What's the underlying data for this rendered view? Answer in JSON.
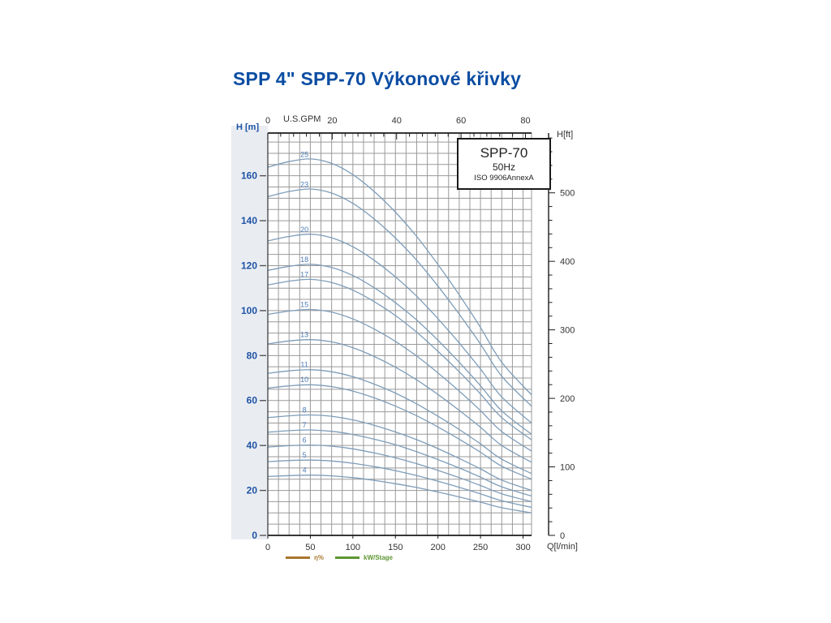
{
  "page": {
    "title": "SPP 4\" SPP-70 Výkonové křivky"
  },
  "info_box": {
    "model": "SPP-70",
    "frequency": "50Hz",
    "standard": "ISO 9906AnnexA"
  },
  "bottom_legend": {
    "items": [
      {
        "label": "η%",
        "color": "#a9762c"
      },
      {
        "label": "kW/Stage",
        "color": "#5d9632"
      }
    ]
  },
  "chart_data": {
    "type": "line",
    "description": "Pump performance curve family, head vs flow, one curve per stage count",
    "x_bottom": {
      "label": "Q[l/min]",
      "ticks": [
        0,
        50,
        100,
        150,
        200,
        250,
        300
      ],
      "range": [
        0,
        310
      ],
      "minor_grid_step": 12.5
    },
    "x_top": {
      "label": "U.S.GPM",
      "ticks": [
        0,
        20,
        40,
        60,
        80
      ],
      "minor_tick_step_gpm": 4,
      "gpm_to_lmin": 3.7854
    },
    "y_left": {
      "label": "H [m]",
      "ticks": [
        0,
        20,
        40,
        60,
        80,
        100,
        120,
        140,
        160
      ],
      "range": [
        0,
        179
      ],
      "minor_grid_step": 5
    },
    "y_right": {
      "label": "H[ft]",
      "ticks": [
        0,
        100,
        200,
        300,
        400,
        500
      ],
      "minor_tick_step_ft": 20,
      "ft_to_m": 0.3048
    },
    "grid": true,
    "legend_position": "none",
    "curve_color": "#7e9db9",
    "curve_label_color": "#4d7cb8",
    "q_samples": [
      0,
      25,
      50,
      75,
      100,
      125,
      150,
      175,
      200,
      225,
      250,
      275,
      310
    ],
    "series": [
      {
        "name": "25",
        "stages": 25,
        "heads": [
          163.8,
          166.3,
          167.5,
          165.5,
          160.5,
          153.0,
          143.8,
          133.0,
          120.5,
          107.0,
          92.5,
          77.0,
          62.5
        ]
      },
      {
        "name": "23",
        "stages": 23,
        "heads": [
          150.7,
          153.0,
          154.1,
          152.3,
          147.7,
          140.8,
          132.3,
          122.4,
          110.9,
          98.4,
          85.1,
          70.8,
          57.5
        ]
      },
      {
        "name": "20",
        "stages": 20,
        "heads": [
          131.0,
          133.0,
          134.0,
          132.4,
          128.4,
          122.4,
          115.0,
          106.4,
          96.4,
          85.6,
          74.0,
          61.6,
          50.0
        ]
      },
      {
        "name": "18",
        "stages": 18,
        "heads": [
          117.9,
          119.7,
          120.6,
          119.2,
          115.6,
          110.2,
          103.5,
          95.8,
          86.8,
          77.0,
          66.6,
          55.4,
          45.0
        ]
      },
      {
        "name": "17",
        "stages": 17,
        "heads": [
          111.4,
          113.1,
          113.9,
          112.5,
          109.1,
          104.0,
          97.8,
          90.4,
          81.9,
          72.8,
          62.9,
          52.4,
          42.5
        ]
      },
      {
        "name": "15",
        "stages": 15,
        "heads": [
          98.3,
          99.8,
          100.5,
          99.3,
          96.3,
          91.8,
          86.3,
          79.8,
          72.3,
          64.2,
          55.5,
          46.2,
          37.5
        ]
      },
      {
        "name": "13",
        "stages": 13,
        "heads": [
          85.2,
          86.5,
          87.1,
          86.1,
          83.5,
          79.6,
          74.8,
          69.2,
          62.7,
          55.6,
          48.1,
          40.0,
          32.5
        ]
      },
      {
        "name": "11",
        "stages": 11,
        "heads": [
          72.1,
          73.2,
          73.7,
          72.8,
          70.6,
          67.3,
          63.3,
          58.5,
          53.0,
          47.1,
          40.7,
          33.9,
          27.5
        ]
      },
      {
        "name": "10",
        "stages": 10,
        "heads": [
          65.5,
          66.5,
          67.0,
          66.2,
          64.2,
          61.2,
          57.5,
          53.2,
          48.2,
          42.8,
          37.0,
          30.8,
          25.0
        ]
      },
      {
        "name": "8",
        "stages": 8,
        "heads": [
          52.4,
          53.2,
          53.6,
          53.0,
          51.4,
          49.0,
          46.0,
          42.6,
          38.6,
          34.2,
          29.6,
          24.6,
          20.0
        ]
      },
      {
        "name": "7",
        "stages": 7,
        "heads": [
          45.9,
          46.6,
          46.9,
          46.3,
          44.9,
          42.8,
          40.3,
          37.2,
          33.7,
          30.0,
          25.9,
          21.6,
          17.5
        ]
      },
      {
        "name": "6",
        "stages": 6,
        "heads": [
          39.3,
          39.9,
          40.2,
          39.7,
          38.5,
          36.7,
          34.5,
          31.9,
          28.9,
          25.7,
          22.2,
          18.5,
          15.0
        ]
      },
      {
        "name": "5",
        "stages": 5,
        "heads": [
          32.8,
          33.3,
          33.5,
          33.1,
          32.1,
          30.6,
          28.8,
          26.6,
          24.1,
          21.4,
          18.5,
          15.4,
          12.5
        ]
      },
      {
        "name": "4",
        "stages": 4,
        "heads": [
          26.2,
          26.6,
          26.8,
          26.5,
          25.7,
          24.5,
          23.0,
          21.3,
          19.3,
          17.1,
          14.8,
          12.3,
          10.0
        ]
      }
    ]
  }
}
